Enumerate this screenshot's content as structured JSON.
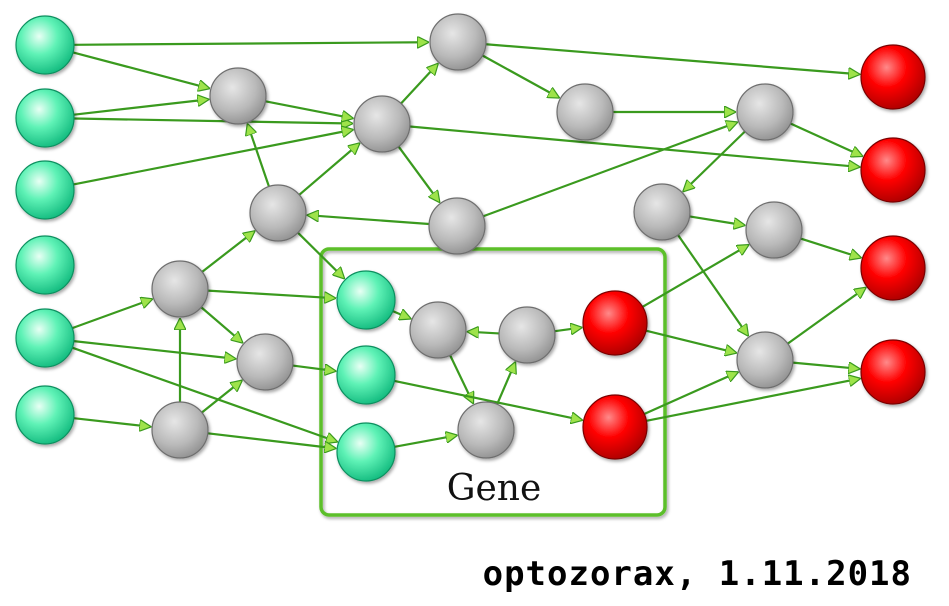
{
  "diagram": {
    "gene_label": "Gene",
    "signature": "optozorax, 1.11.2018",
    "colors": {
      "edge": "#3a9a1e",
      "arrowhead": "#9ee34a",
      "input_node": "#2ee8a0",
      "hidden_node": "#b5b5b5",
      "output_node": "#ff0000",
      "gene_box": "#5cbf2a"
    },
    "node_types": [
      "input",
      "hidden",
      "output"
    ]
  }
}
